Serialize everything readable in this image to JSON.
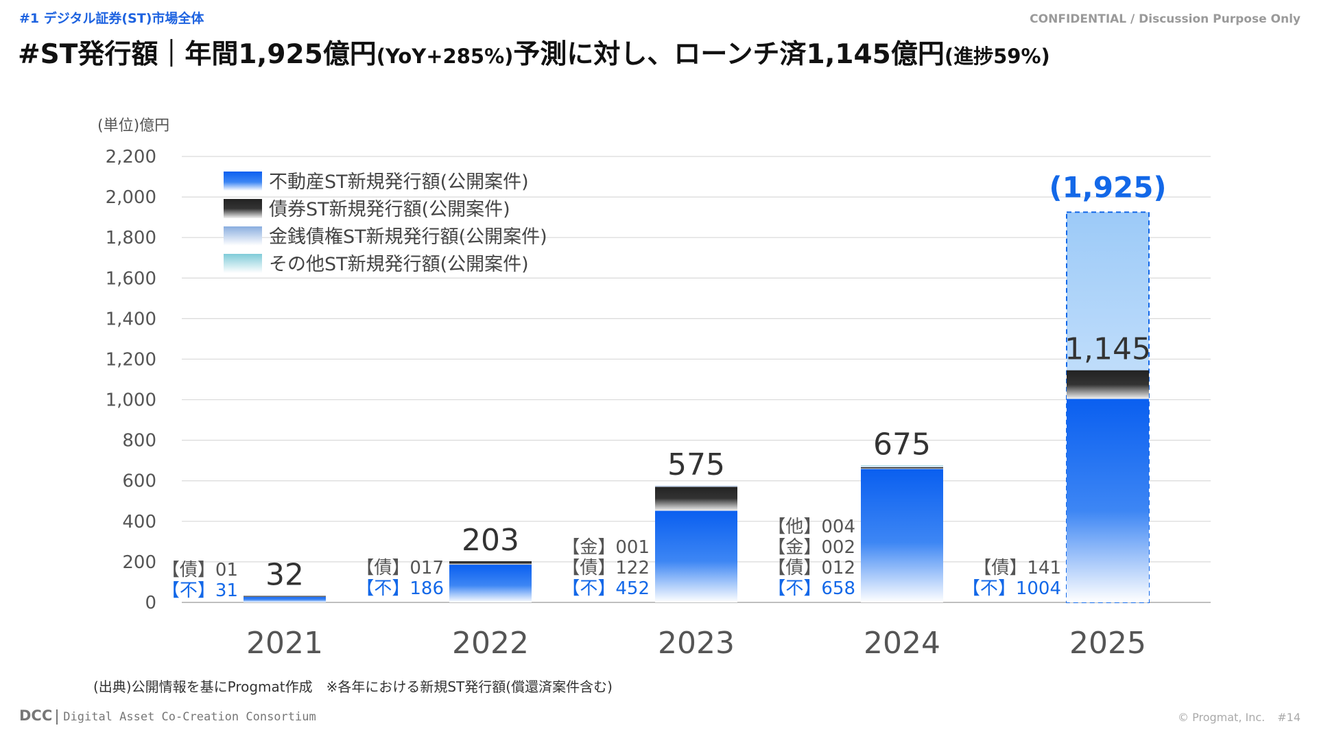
{
  "header": {
    "section_tag": "#1 デジタル証券(ST)市場全体",
    "confidential": "CONFIDENTIAL / Discussion Purpose Only",
    "title_part1": "#ST発行額｜年間1,925億円",
    "title_part2": "(YoY+285%)",
    "title_part3": "予測に対し、ローンチ済1,145億円",
    "title_part4": "(進捗59%)"
  },
  "colors": {
    "real_estate": "#0a62f0",
    "bond": "#2b2b2b",
    "monetary": "#8fb0e0",
    "other": "#8fd3e0",
    "forecast": "#9ccaf7",
    "accent_text": "#1368e8"
  },
  "chart_data": {
    "type": "bar",
    "stacked": true,
    "unit_label": "(単位)億円",
    "ylim": [
      0,
      2200
    ],
    "yticks": [
      "0",
      "200",
      "400",
      "600",
      "800",
      "1,000",
      "1,200",
      "1,400",
      "1,600",
      "1,800",
      "2,000",
      "2,200"
    ],
    "grid": true,
    "legend_position": "top-left",
    "categories": [
      "2021",
      "2022",
      "2023",
      "2024",
      "2025"
    ],
    "series": [
      {
        "name": "不動産ST新規発行額(公開案件)",
        "key": "real_estate",
        "values": [
          31,
          186,
          452,
          658,
          1004
        ]
      },
      {
        "name": "債券ST新規発行額(公開案件)",
        "key": "bond",
        "values": [
          1,
          17,
          122,
          12,
          141
        ]
      },
      {
        "name": "金銭債権ST新規発行額(公開案件)",
        "key": "monetary",
        "values": [
          0,
          0,
          1,
          2,
          0
        ]
      },
      {
        "name": "その他ST新規発行額(公開案件)",
        "key": "other",
        "values": [
          0,
          0,
          0,
          4,
          0
        ]
      }
    ],
    "totals": [
      "32",
      "203",
      "575",
      "675",
      "1,145"
    ],
    "forecast": {
      "category": "2025",
      "value": 1925,
      "label": "(1,925)"
    },
    "segment_labels": [
      [
        "【債】01",
        "【不】31"
      ],
      [
        "【債】017",
        "【不】186"
      ],
      [
        "【金】001",
        "【債】122",
        "【不】452"
      ],
      [
        "【他】004",
        "【金】002",
        "【債】012",
        "【不】658"
      ],
      [
        "【債】141",
        "【不】1004"
      ]
    ]
  },
  "source_note": "(出典)公開情報を基にProgmat作成　※各年における新規ST発行額(償還済案件含む)",
  "footer": {
    "logo_dcc": "DCC",
    "logo_text": "Digital Asset Co-Creation Consortium",
    "copyright": "© Progmat, Inc.",
    "page": "#14"
  }
}
